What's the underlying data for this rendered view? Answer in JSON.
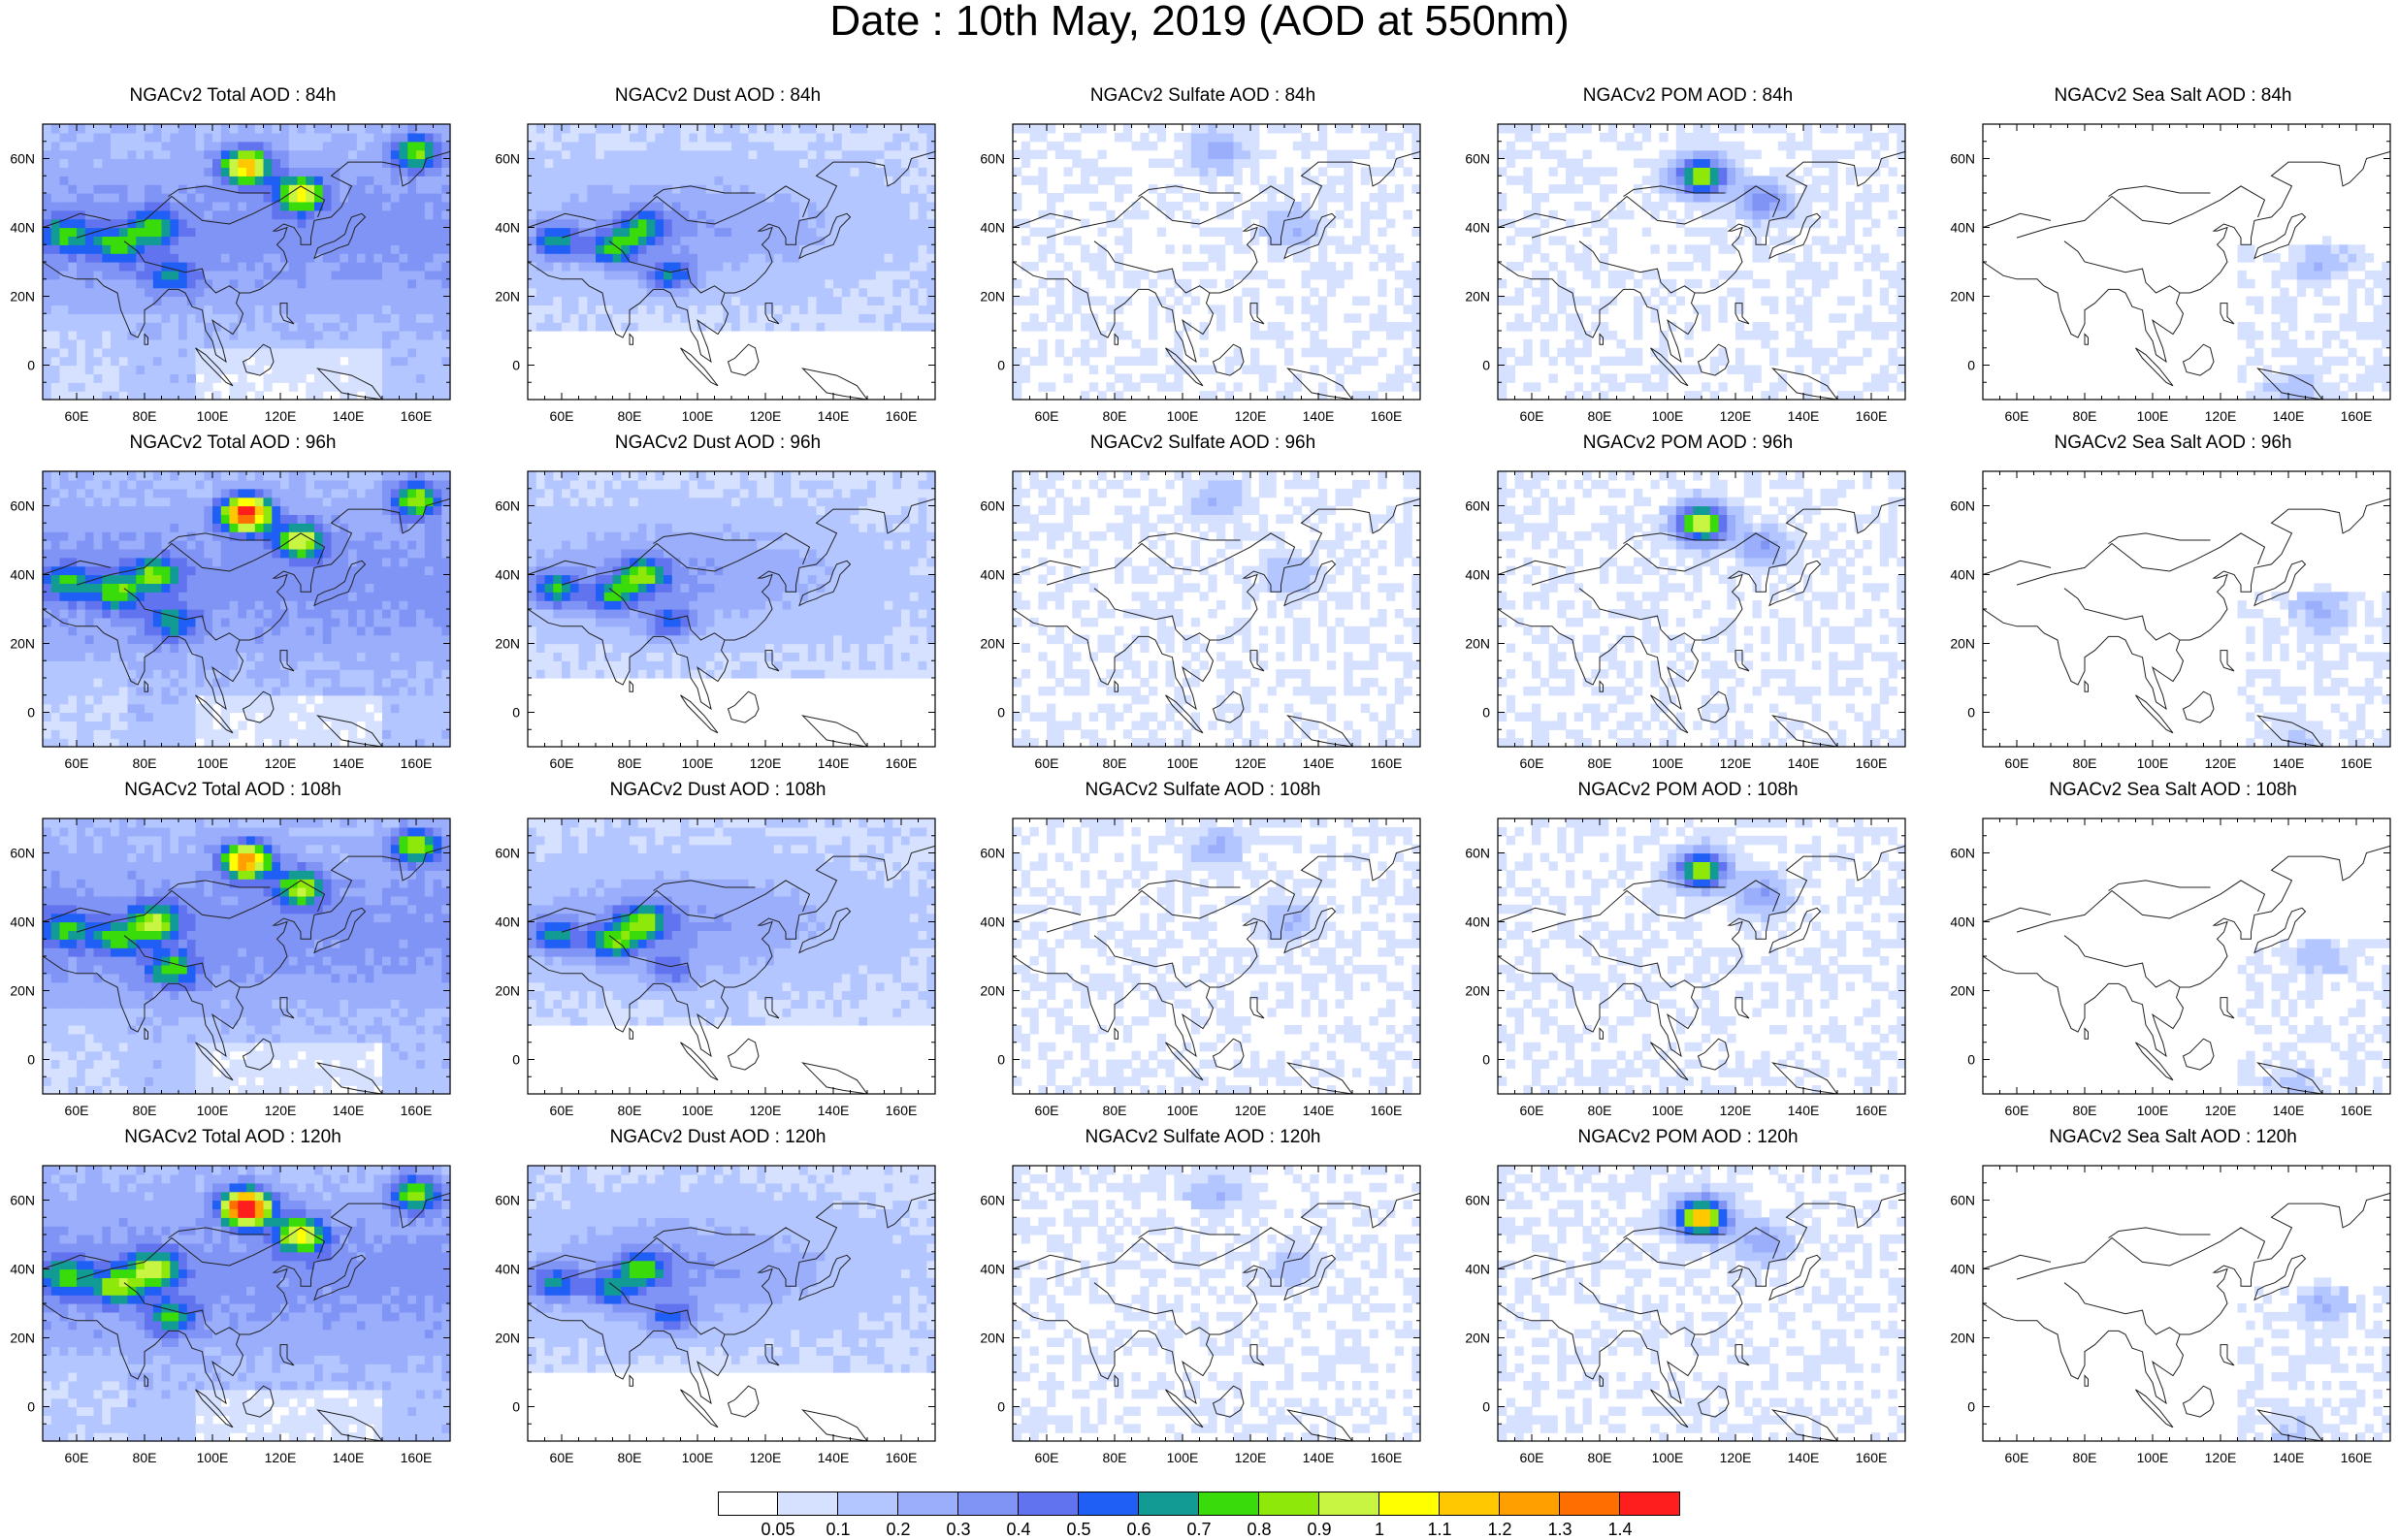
{
  "title": "Date : 10th May, 2019 (AOD at 550nm)",
  "chart_data": {
    "type": "heatmap",
    "title": "Date : 10th May, 2019 (AOD at 550nm)",
    "columns": [
      "Total",
      "Dust",
      "Sulfate",
      "POM",
      "Sea Salt"
    ],
    "rows": [
      "84h",
      "96h",
      "108h",
      "120h"
    ],
    "lon_ticks": [
      "60E",
      "80E",
      "100E",
      "120E",
      "140E",
      "160E"
    ],
    "lat_ticks": [
      "60N",
      "40N",
      "20N",
      "0"
    ],
    "xlim": [
      50,
      170
    ],
    "ylim": [
      -10,
      70
    ],
    "panels": [
      {
        "title": "NGACv2 Total AOD : 84h",
        "species": "total",
        "hour": 84
      },
      {
        "title": "NGACv2 Dust AOD : 84h",
        "species": "dust",
        "hour": 84
      },
      {
        "title": "NGACv2 Sulfate AOD : 84h",
        "species": "sulfate",
        "hour": 84
      },
      {
        "title": "NGACv2 POM AOD : 84h",
        "species": "pom",
        "hour": 84
      },
      {
        "title": "NGACv2 Sea Salt AOD : 84h",
        "species": "seasalt",
        "hour": 84
      },
      {
        "title": "NGACv2 Total AOD : 96h",
        "species": "total",
        "hour": 96
      },
      {
        "title": "NGACv2 Dust AOD : 96h",
        "species": "dust",
        "hour": 96
      },
      {
        "title": "NGACv2 Sulfate AOD : 96h",
        "species": "sulfate",
        "hour": 96
      },
      {
        "title": "NGACv2 POM AOD : 96h",
        "species": "pom",
        "hour": 96
      },
      {
        "title": "NGACv2 Sea Salt AOD : 96h",
        "species": "seasalt",
        "hour": 96
      },
      {
        "title": "NGACv2 Total AOD : 108h",
        "species": "total",
        "hour": 108
      },
      {
        "title": "NGACv2 Dust AOD : 108h",
        "species": "dust",
        "hour": 108
      },
      {
        "title": "NGACv2 Sulfate AOD : 108h",
        "species": "sulfate",
        "hour": 108
      },
      {
        "title": "NGACv2 POM AOD : 108h",
        "species": "pom",
        "hour": 108
      },
      {
        "title": "NGACv2 Sea Salt AOD : 108h",
        "species": "seasalt",
        "hour": 108
      },
      {
        "title": "NGACv2 Total AOD : 120h",
        "species": "total",
        "hour": 120
      },
      {
        "title": "NGACv2 Dust AOD : 120h",
        "species": "dust",
        "hour": 120
      },
      {
        "title": "NGACv2 Sulfate AOD : 120h",
        "species": "sulfate",
        "hour": 120
      },
      {
        "title": "NGACv2 POM AOD : 120h",
        "species": "pom",
        "hour": 120
      },
      {
        "title": "NGACv2 Sea Salt  AOD : 120h",
        "species": "seasalt",
        "hour": 120
      }
    ],
    "colorbar": {
      "labels": [
        "0.05",
        "0.1",
        "0.2",
        "0.3",
        "0.4",
        "0.5",
        "0.6",
        "0.7",
        "0.8",
        "0.9",
        "1",
        "1.1",
        "1.2",
        "1.3",
        "1.4"
      ],
      "colors": [
        "#ffffff",
        "#d6e1ff",
        "#b4c6ff",
        "#9aaefc",
        "#8094f5",
        "#6173ef",
        "#1f5ff5",
        "#129a95",
        "#3adb0b",
        "#8ee80a",
        "#c8f542",
        "#ffff00",
        "#ffc800",
        "#ffa000",
        "#ff6e00",
        "#ff1e1e"
      ]
    },
    "features": {
      "total": [
        {
          "lon": 57,
          "lat": 38,
          "aod": 0.5
        },
        {
          "lon": 72,
          "lat": 35,
          "aod": 0.45
        },
        {
          "lon": 83,
          "lat": 40,
          "aod": 0.55
        },
        {
          "lon": 88,
          "lat": 26,
          "aod": 0.45
        },
        {
          "lon": 110,
          "lat": 58,
          "aod": 1.2
        },
        {
          "lon": 126,
          "lat": 50,
          "aod": 0.8
        },
        {
          "lon": 160,
          "lat": 62,
          "aod": 0.6
        }
      ],
      "dust": [
        {
          "lon": 58,
          "lat": 36,
          "aod": 0.45
        },
        {
          "lon": 75,
          "lat": 34,
          "aod": 0.5
        },
        {
          "lon": 84,
          "lat": 40,
          "aod": 0.5
        },
        {
          "lon": 92,
          "lat": 26,
          "aod": 0.35
        }
      ],
      "sulfate": [
        {
          "lon": 110,
          "lat": 62,
          "aod": 0.2
        },
        {
          "lon": 132,
          "lat": 40,
          "aod": 0.15
        }
      ],
      "pom": [
        {
          "lon": 110,
          "lat": 55,
          "aod": 1.1
        },
        {
          "lon": 128,
          "lat": 48,
          "aod": 0.3
        }
      ],
      "seasalt": [
        {
          "lon": 150,
          "lat": 30,
          "aod": 0.15
        },
        {
          "lon": 142,
          "lat": -8,
          "aod": 0.1
        }
      ]
    }
  }
}
